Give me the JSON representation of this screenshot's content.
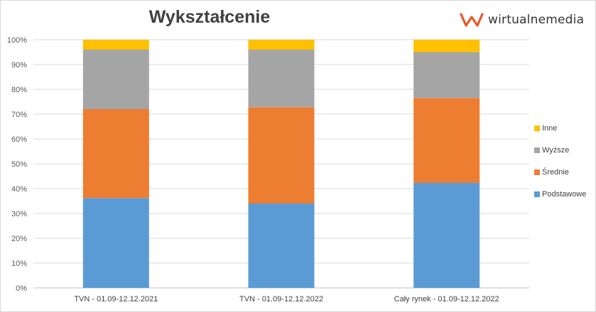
{
  "brand": {
    "name": "wirtualnemedia",
    "accent": "#e8572a"
  },
  "chart_data": {
    "type": "bar",
    "stacked": true,
    "percent": true,
    "title": "Wykształcenie",
    "categories": [
      "TVN - 01.09-12.12.2021",
      "TVN - 01.09-12.12.2022",
      "Cały rynek - 01.09-12.12.2022"
    ],
    "ylim": [
      0,
      100
    ],
    "yticks": [
      "0%",
      "10%",
      "20%",
      "30%",
      "40%",
      "50%",
      "60%",
      "70%",
      "80%",
      "90%",
      "100%"
    ],
    "grid": true,
    "legend_position": "right",
    "series": [
      {
        "name": "Podstawowe",
        "color": "#5b9bd5",
        "values": [
          36.2,
          34.0,
          42.3
        ]
      },
      {
        "name": "Średnie",
        "color": "#ed7d31",
        "values": [
          35.8,
          38.8,
          34.2
        ]
      },
      {
        "name": "Wyższe",
        "color": "#a5a5a5",
        "values": [
          24.0,
          23.2,
          18.5
        ]
      },
      {
        "name": "Inne",
        "color": "#ffc000",
        "values": [
          4.0,
          4.0,
          5.0
        ]
      }
    ]
  }
}
